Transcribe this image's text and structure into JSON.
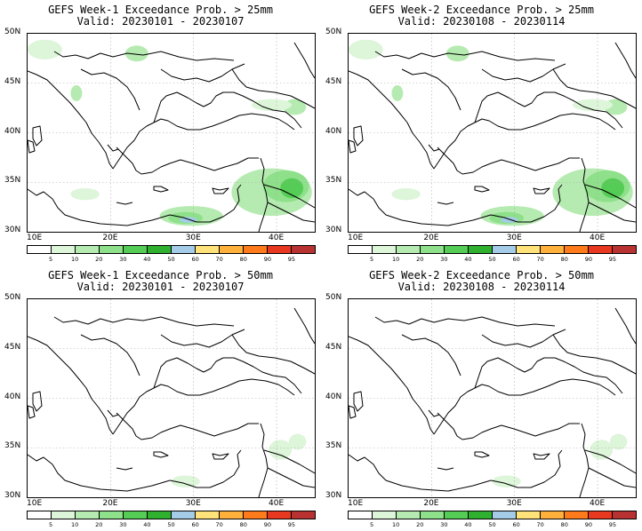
{
  "panels": [
    {
      "title": "GEFS Week-1 Exceedance Prob. > 25mm",
      "valid": "Valid: 20230101 - 20230107",
      "threshold": 25
    },
    {
      "title": "GEFS Week-2 Exceedance Prob. > 25mm",
      "valid": "Valid: 20230108 - 20230114",
      "threshold": 25
    },
    {
      "title": "GEFS Week-1 Exceedance Prob. > 50mm",
      "valid": "Valid: 20230101 - 20230107",
      "threshold": 50
    },
    {
      "title": "GEFS Week-2 Exceedance Prob. > 50mm",
      "valid": "Valid: 20230108 - 20230114",
      "threshold": 50
    }
  ],
  "map": {
    "lat_labels": [
      "50N",
      "45N",
      "40N",
      "35N",
      "30N"
    ],
    "lon_labels": [
      "10E",
      "20E",
      "30E",
      "40E"
    ],
    "grid": "dotted"
  },
  "colorbar": {
    "labels": [
      "5",
      "10",
      "20",
      "30",
      "40",
      "50",
      "60",
      "70",
      "80",
      "90",
      "95"
    ],
    "colors": [
      "#ffffff",
      "#ddf5d9",
      "#b5ebb0",
      "#8ee08a",
      "#55cc55",
      "#2fb02f",
      "#1b8f1b",
      "#a4cce8",
      "#ffe27a",
      "#ffb13b",
      "#ff7a1a",
      "#e83820",
      "#b81a1a",
      "#b83232"
    ]
  }
}
